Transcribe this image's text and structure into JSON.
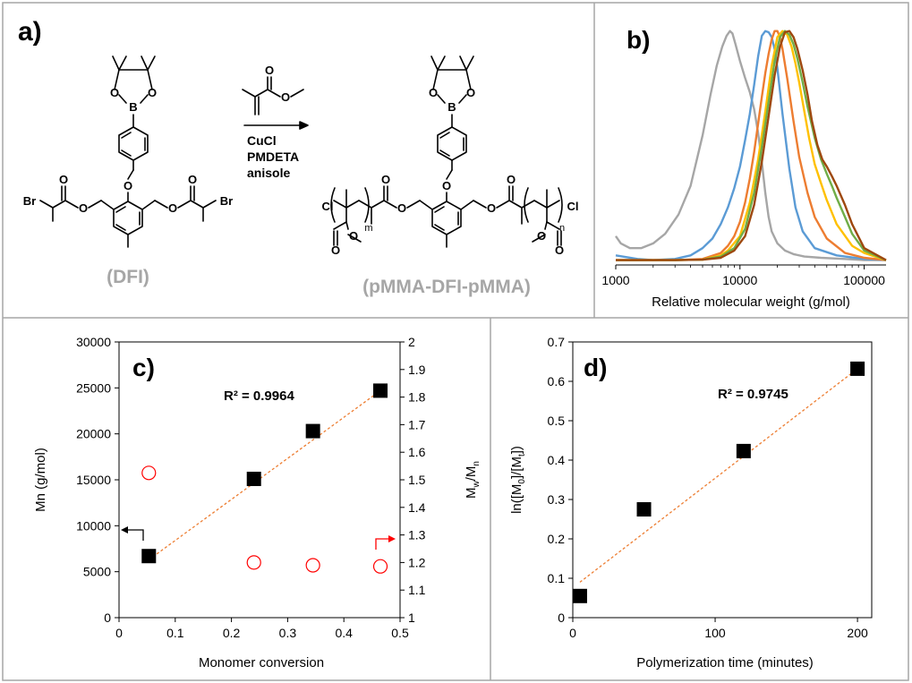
{
  "panel_a": {
    "label": "a)",
    "reagent_lines": [
      "CuCl",
      "PMDETA",
      "anisole"
    ],
    "left_compound": "(DFI)",
    "right_compound": "(pMMA-DFI-pMMA)",
    "atoms": {
      "O": "O",
      "B": "B",
      "Br": "Br",
      "Cl": "Cl",
      "m": "m",
      "n": "n"
    }
  },
  "chart_data": [
    {
      "id": "b",
      "type": "line",
      "panel_label": "b)",
      "xlabel": "Relative molecular weight (g/mol)",
      "xscale": "log",
      "xlim": [
        1000,
        150000
      ],
      "xticks": [
        1000,
        10000,
        100000
      ],
      "xtick_labels": [
        "1000",
        "10000",
        "100000"
      ],
      "ylim": [
        0,
        1.0
      ],
      "grid": false,
      "series": [
        {
          "color": "#a6a6a6",
          "x": [
            1000,
            1100,
            1300,
            1600,
            2000,
            2500,
            3200,
            4000,
            5000,
            5800,
            6500,
            7200,
            7800,
            8300,
            8700,
            9200,
            10000,
            11000,
            12000,
            13000,
            14000,
            15000,
            16000,
            17000,
            18000,
            20000,
            23000,
            27000,
            33000,
            45000,
            70000,
            100000,
            150000
          ],
          "y": [
            0.12,
            0.09,
            0.07,
            0.07,
            0.09,
            0.13,
            0.21,
            0.33,
            0.54,
            0.71,
            0.83,
            0.91,
            0.955,
            0.975,
            0.965,
            0.92,
            0.85,
            0.78,
            0.72,
            0.65,
            0.55,
            0.43,
            0.3,
            0.2,
            0.14,
            0.09,
            0.06,
            0.045,
            0.035,
            0.03,
            0.025,
            0.02,
            0.02
          ]
        },
        {
          "color": "#5b9bd5",
          "x": [
            1000,
            1500,
            2000,
            3000,
            4000,
            5000,
            6000,
            7000,
            8000,
            9000,
            10000,
            11000,
            12000,
            13000,
            14000,
            15000,
            16000,
            17000,
            18000,
            19000,
            20000,
            22000,
            25000,
            28000,
            32000,
            40000,
            60000,
            100000,
            150000
          ],
          "y": [
            0.04,
            0.025,
            0.02,
            0.025,
            0.04,
            0.07,
            0.11,
            0.17,
            0.24,
            0.32,
            0.41,
            0.52,
            0.63,
            0.75,
            0.87,
            0.955,
            0.975,
            0.97,
            0.95,
            0.9,
            0.82,
            0.63,
            0.4,
            0.24,
            0.14,
            0.07,
            0.04,
            0.025,
            0.02
          ]
        },
        {
          "color": "#ed7d31",
          "x": [
            1000,
            2000,
            3000,
            5000,
            7000,
            8000,
            9000,
            10000,
            11000,
            12000,
            13000,
            14000,
            15000,
            16000,
            17000,
            18000,
            19000,
            20000,
            21000,
            22000,
            24000,
            27000,
            30000,
            35000,
            40000,
            50000,
            70000,
            100000,
            150000
          ],
          "y": [
            0.02,
            0.02,
            0.02,
            0.025,
            0.05,
            0.08,
            0.12,
            0.18,
            0.26,
            0.36,
            0.47,
            0.59,
            0.7,
            0.8,
            0.88,
            0.94,
            0.975,
            0.975,
            0.95,
            0.9,
            0.78,
            0.6,
            0.45,
            0.3,
            0.2,
            0.11,
            0.05,
            0.03,
            0.02
          ]
        },
        {
          "color": "#ffc000",
          "x": [
            1000,
            3000,
            5000,
            7000,
            8000,
            10000,
            12000,
            14000,
            16000,
            18000,
            20000,
            22000,
            24000,
            26000,
            28000,
            30000,
            33000,
            36000,
            40000,
            45000,
            50000,
            60000,
            80000,
            100000,
            150000
          ],
          "y": [
            0.02,
            0.02,
            0.022,
            0.04,
            0.06,
            0.12,
            0.26,
            0.44,
            0.64,
            0.83,
            0.95,
            0.975,
            0.96,
            0.91,
            0.84,
            0.76,
            0.64,
            0.53,
            0.42,
            0.34,
            0.27,
            0.17,
            0.08,
            0.05,
            0.02
          ]
        },
        {
          "color": "#70ad47",
          "x": [
            1000,
            3000,
            5000,
            7000,
            9000,
            11000,
            13000,
            15000,
            17000,
            19000,
            21000,
            23000,
            25000,
            27000,
            29000,
            32000,
            35000,
            40000,
            45000,
            50000,
            55000,
            60000,
            70000,
            80000,
            100000,
            150000
          ],
          "y": [
            0.02,
            0.02,
            0.022,
            0.035,
            0.07,
            0.15,
            0.3,
            0.49,
            0.68,
            0.85,
            0.95,
            0.975,
            0.96,
            0.92,
            0.86,
            0.76,
            0.66,
            0.53,
            0.44,
            0.38,
            0.33,
            0.28,
            0.2,
            0.13,
            0.06,
            0.02
          ]
        },
        {
          "color": "#9e480e",
          "x": [
            1000,
            3000,
            5000,
            7000,
            9000,
            11000,
            13000,
            15000,
            17000,
            19000,
            21000,
            23000,
            25000,
            27000,
            29000,
            32000,
            35000,
            38000,
            42000,
            46000,
            50000,
            55000,
            60000,
            70000,
            80000,
            100000,
            150000
          ],
          "y": [
            0.02,
            0.02,
            0.022,
            0.03,
            0.06,
            0.12,
            0.25,
            0.43,
            0.62,
            0.79,
            0.91,
            0.97,
            0.975,
            0.95,
            0.9,
            0.81,
            0.71,
            0.6,
            0.5,
            0.44,
            0.41,
            0.37,
            0.33,
            0.25,
            0.17,
            0.07,
            0.02
          ]
        }
      ]
    },
    {
      "id": "c",
      "type": "scatter",
      "panel_label": "c)",
      "xlabel": "Monomer conversion",
      "ylabel_left": "Mn (g/mol)",
      "ylabel_right": {
        "main": "M",
        "sub1": "w",
        "slash": "/M",
        "sub2": "n"
      },
      "xlim": [
        0,
        0.5
      ],
      "ylim_left": [
        0,
        30000
      ],
      "ylim_right": [
        1,
        2
      ],
      "xticks": [
        0,
        0.1,
        0.2,
        0.3,
        0.4,
        0.5
      ],
      "xtick_labels": [
        "0",
        "0.1",
        "0.2",
        "0.3",
        "0.4",
        "0.5"
      ],
      "yticks_left": [
        0,
        5000,
        10000,
        15000,
        20000,
        25000,
        30000
      ],
      "ytick_labels_left": [
        "0",
        "5000",
        "10000",
        "15000",
        "20000",
        "25000",
        "30000"
      ],
      "yticks_right": [
        1,
        1.1,
        1.2,
        1.3,
        1.4,
        1.5,
        1.6,
        1.7,
        1.8,
        1.9,
        2
      ],
      "ytick_labels_right": [
        "1",
        "1.1",
        "1.2",
        "1.3",
        "1.4",
        "1.5",
        "1.6",
        "1.7",
        "1.8",
        "1.9",
        "2"
      ],
      "series": [
        {
          "axis": "left",
          "marker": "square",
          "color": "#000000",
          "x": [
            0.053,
            0.24,
            0.345,
            0.465
          ],
          "y": [
            6700,
            15100,
            20300,
            24700
          ]
        },
        {
          "axis": "right",
          "marker": "circle-open",
          "color": "#ff0000",
          "x": [
            0.053,
            0.24,
            0.345,
            0.465
          ],
          "y": [
            1.525,
            1.2,
            1.19,
            1.186
          ]
        }
      ],
      "trendline": {
        "color": "#ed7d31",
        "x": [
          0.053,
          0.465
        ],
        "y": [
          6300,
          24700
        ]
      },
      "annotation": "R² = 0.9964",
      "arrow_left_color": "#000000",
      "arrow_right_color": "#ff0000",
      "grid": false
    },
    {
      "id": "d",
      "type": "scatter",
      "panel_label": "d)",
      "xlabel": "Polymerization time (minutes)",
      "ylabel": {
        "a": "ln([M",
        "s1": "0",
        "b": "]/[M",
        "s2": "t",
        "c": "])"
      },
      "xlim": [
        0,
        210
      ],
      "ylim": [
        0,
        0.7
      ],
      "xticks": [
        0,
        100,
        200
      ],
      "xtick_labels": [
        "0",
        "100",
        "200"
      ],
      "yticks": [
        0,
        0.1,
        0.2,
        0.3,
        0.4,
        0.5,
        0.6,
        0.7
      ],
      "ytick_labels": [
        "0",
        "0.1",
        "0.2",
        "0.3",
        "0.4",
        "0.5",
        "0.6",
        "0.7"
      ],
      "series": [
        {
          "marker": "square",
          "color": "#000000",
          "x": [
            5,
            50,
            120,
            200
          ],
          "y": [
            0.055,
            0.275,
            0.423,
            0.632
          ]
        }
      ],
      "trendline": {
        "color": "#ed7d31",
        "x": [
          5,
          200
        ],
        "y": [
          0.09,
          0.632
        ]
      },
      "annotation": "R² = 0.9745",
      "grid": false
    }
  ]
}
